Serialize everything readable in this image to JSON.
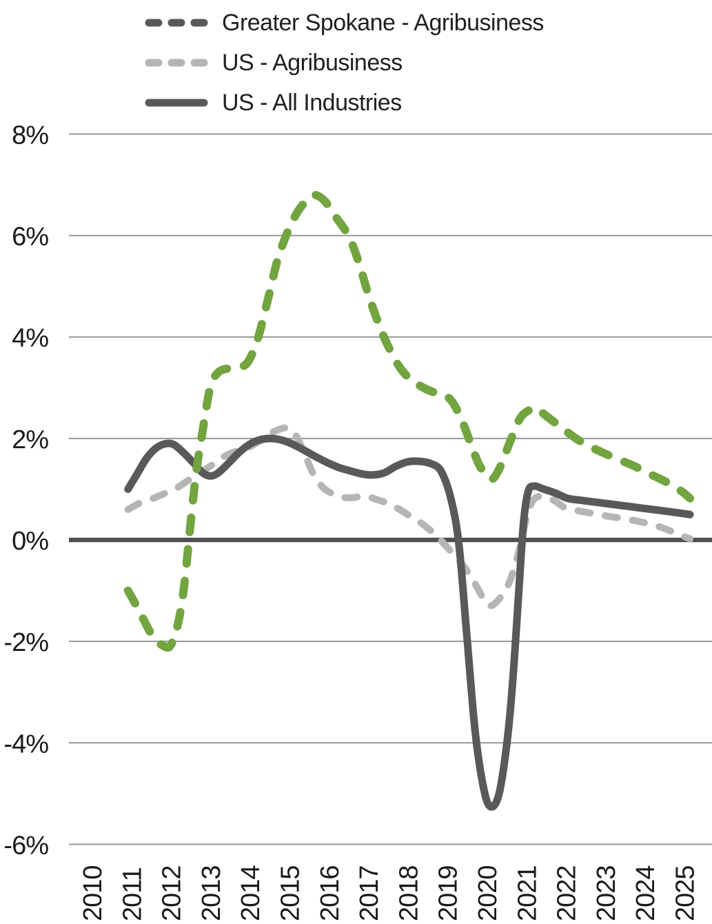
{
  "legend": {
    "items": [
      {
        "label": "Greater Spokane - Agribusiness",
        "color": "#72A440",
        "style": "dashed"
      },
      {
        "label": "US - Agribusiness",
        "color": "#B5B5B5",
        "style": "dashed"
      },
      {
        "label": "US - All Industries",
        "color": "#595959",
        "style": "solid"
      }
    ]
  },
  "chart_data": {
    "type": "line",
    "title": "",
    "xlabel": "",
    "ylabel": "",
    "grid": true,
    "legend_position": "top-left",
    "ylim": [
      -6,
      8
    ],
    "xlim": [
      2010,
      2025.4
    ],
    "y_ticks": [
      {
        "label": "8%",
        "value": 8
      },
      {
        "label": "6%",
        "value": 6
      },
      {
        "label": "4%",
        "value": 4
      },
      {
        "label": "2%",
        "value": 2
      },
      {
        "label": "0%",
        "value": 0
      },
      {
        "label": "-2%",
        "value": -2
      },
      {
        "label": "-4%",
        "value": -4
      },
      {
        "label": "-6%",
        "value": -6
      }
    ],
    "x_ticks": [
      "2010",
      "2011",
      "2012",
      "2013",
      "2014",
      "2015",
      "2016",
      "2017",
      "2018",
      "2019",
      "2020",
      "2021",
      "2022",
      "2023",
      "2024",
      "2025"
    ],
    "series": [
      {
        "name": "US - Agribusiness",
        "color": "#B5B5B5",
        "dashed": true,
        "points": [
          [
            2010.92,
            0.6
          ],
          [
            2011.2,
            0.72
          ],
          [
            2011.5,
            0.8
          ],
          [
            2011.8,
            0.9
          ],
          [
            2012.1,
            1.0
          ],
          [
            2012.4,
            1.15
          ],
          [
            2012.7,
            1.3
          ],
          [
            2013.0,
            1.45
          ],
          [
            2013.3,
            1.62
          ],
          [
            2013.6,
            1.73
          ],
          [
            2013.9,
            1.8
          ],
          [
            2014.2,
            1.92
          ],
          [
            2014.5,
            2.08
          ],
          [
            2014.75,
            2.18
          ],
          [
            2015.0,
            2.2
          ],
          [
            2015.2,
            2.02
          ],
          [
            2015.4,
            1.68
          ],
          [
            2015.6,
            1.32
          ],
          [
            2015.8,
            1.08
          ],
          [
            2016.0,
            0.95
          ],
          [
            2016.3,
            0.85
          ],
          [
            2016.6,
            0.83
          ],
          [
            2016.9,
            0.87
          ],
          [
            2017.2,
            0.8
          ],
          [
            2017.5,
            0.72
          ],
          [
            2017.8,
            0.6
          ],
          [
            2018.1,
            0.45
          ],
          [
            2018.4,
            0.3
          ],
          [
            2018.7,
            0.1
          ],
          [
            2018.95,
            -0.1
          ],
          [
            2019.2,
            -0.32
          ],
          [
            2019.45,
            -0.55
          ],
          [
            2019.7,
            -0.85
          ],
          [
            2019.95,
            -1.2
          ],
          [
            2020.1,
            -1.3
          ],
          [
            2020.3,
            -1.18
          ],
          [
            2020.55,
            -0.88
          ],
          [
            2020.75,
            -0.42
          ],
          [
            2020.9,
            0.05
          ],
          [
            2021.05,
            0.55
          ],
          [
            2021.2,
            0.8
          ],
          [
            2021.4,
            0.86
          ],
          [
            2021.7,
            0.78
          ],
          [
            2022.0,
            0.63
          ],
          [
            2022.35,
            0.57
          ],
          [
            2022.7,
            0.52
          ],
          [
            2023.05,
            0.47
          ],
          [
            2023.4,
            0.43
          ],
          [
            2023.75,
            0.38
          ],
          [
            2024.1,
            0.32
          ],
          [
            2024.45,
            0.24
          ],
          [
            2024.8,
            0.13
          ],
          [
            2025.15,
            0.02
          ]
        ]
      },
      {
        "name": "US - All Industries",
        "color": "#595959",
        "dashed": false,
        "points": [
          [
            2010.92,
            1.0
          ],
          [
            2011.15,
            1.3
          ],
          [
            2011.4,
            1.62
          ],
          [
            2011.65,
            1.82
          ],
          [
            2011.9,
            1.9
          ],
          [
            2012.1,
            1.87
          ],
          [
            2012.35,
            1.7
          ],
          [
            2012.6,
            1.5
          ],
          [
            2012.8,
            1.33
          ],
          [
            2013.0,
            1.26
          ],
          [
            2013.2,
            1.32
          ],
          [
            2013.45,
            1.5
          ],
          [
            2013.7,
            1.7
          ],
          [
            2013.95,
            1.86
          ],
          [
            2014.2,
            1.96
          ],
          [
            2014.5,
            2.0
          ],
          [
            2014.8,
            1.97
          ],
          [
            2015.05,
            1.9
          ],
          [
            2015.35,
            1.78
          ],
          [
            2015.65,
            1.65
          ],
          [
            2015.95,
            1.53
          ],
          [
            2016.25,
            1.43
          ],
          [
            2016.55,
            1.36
          ],
          [
            2016.85,
            1.3
          ],
          [
            2017.1,
            1.28
          ],
          [
            2017.4,
            1.32
          ],
          [
            2017.7,
            1.45
          ],
          [
            2018.0,
            1.54
          ],
          [
            2018.3,
            1.55
          ],
          [
            2018.6,
            1.5
          ],
          [
            2018.85,
            1.35
          ],
          [
            2019.1,
            0.8
          ],
          [
            2019.3,
            -0.1
          ],
          [
            2019.5,
            -1.9
          ],
          [
            2019.7,
            -3.7
          ],
          [
            2019.9,
            -4.8
          ],
          [
            2020.08,
            -5.25
          ],
          [
            2020.3,
            -5.05
          ],
          [
            2020.5,
            -4.1
          ],
          [
            2020.65,
            -2.9
          ],
          [
            2020.8,
            -1.2
          ],
          [
            2020.93,
            0.3
          ],
          [
            2021.05,
            0.95
          ],
          [
            2021.2,
            1.06
          ],
          [
            2021.45,
            1.0
          ],
          [
            2021.75,
            0.92
          ],
          [
            2022.05,
            0.82
          ],
          [
            2022.4,
            0.78
          ],
          [
            2022.8,
            0.74
          ],
          [
            2023.2,
            0.7
          ],
          [
            2023.6,
            0.66
          ],
          [
            2024.0,
            0.62
          ],
          [
            2024.4,
            0.58
          ],
          [
            2024.8,
            0.54
          ],
          [
            2025.15,
            0.5
          ]
        ]
      },
      {
        "name": "Greater Spokane - Agribusiness",
        "color": "#72A440",
        "dashed": true,
        "points": [
          [
            2010.92,
            -1.0
          ],
          [
            2011.1,
            -1.25
          ],
          [
            2011.3,
            -1.55
          ],
          [
            2011.55,
            -1.9
          ],
          [
            2011.8,
            -2.08
          ],
          [
            2012.0,
            -2.08
          ],
          [
            2012.2,
            -1.6
          ],
          [
            2012.35,
            -0.85
          ],
          [
            2012.5,
            0.3
          ],
          [
            2012.65,
            1.35
          ],
          [
            2012.8,
            2.1
          ],
          [
            2013.0,
            3.0
          ],
          [
            2013.2,
            3.3
          ],
          [
            2013.45,
            3.38
          ],
          [
            2013.7,
            3.4
          ],
          [
            2013.95,
            3.5
          ],
          [
            2014.2,
            3.95
          ],
          [
            2014.45,
            4.7
          ],
          [
            2014.7,
            5.5
          ],
          [
            2014.95,
            6.05
          ],
          [
            2015.2,
            6.45
          ],
          [
            2015.45,
            6.7
          ],
          [
            2015.65,
            6.8
          ],
          [
            2015.9,
            6.68
          ],
          [
            2016.15,
            6.4
          ],
          [
            2016.5,
            6.0
          ],
          [
            2016.75,
            5.5
          ],
          [
            2017.0,
            4.85
          ],
          [
            2017.2,
            4.4
          ],
          [
            2017.4,
            4.0
          ],
          [
            2017.65,
            3.6
          ],
          [
            2017.85,
            3.35
          ],
          [
            2018.1,
            3.15
          ],
          [
            2018.4,
            3.0
          ],
          [
            2018.7,
            2.9
          ],
          [
            2018.95,
            2.85
          ],
          [
            2019.15,
            2.7
          ],
          [
            2019.35,
            2.4
          ],
          [
            2019.55,
            2.0
          ],
          [
            2019.8,
            1.5
          ],
          [
            2020.0,
            1.27
          ],
          [
            2020.15,
            1.2
          ],
          [
            2020.35,
            1.45
          ],
          [
            2020.6,
            1.95
          ],
          [
            2020.85,
            2.4
          ],
          [
            2021.1,
            2.57
          ],
          [
            2021.25,
            2.6
          ],
          [
            2021.5,
            2.45
          ],
          [
            2021.75,
            2.3
          ],
          [
            2022.0,
            2.15
          ],
          [
            2022.3,
            1.98
          ],
          [
            2022.65,
            1.83
          ],
          [
            2023.0,
            1.7
          ],
          [
            2023.35,
            1.58
          ],
          [
            2023.7,
            1.47
          ],
          [
            2024.05,
            1.33
          ],
          [
            2024.4,
            1.2
          ],
          [
            2024.7,
            1.08
          ],
          [
            2024.95,
            0.95
          ],
          [
            2025.15,
            0.82
          ]
        ]
      }
    ]
  }
}
